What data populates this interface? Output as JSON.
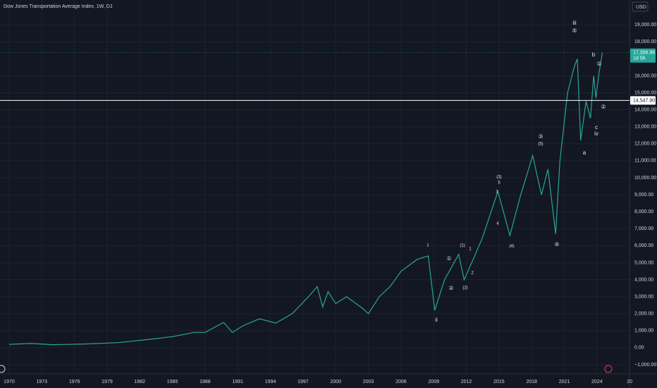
{
  "chart_data": {
    "type": "line",
    "title": "Dow Jones Transportation Average Index, 1W, DJ",
    "currency": "USD",
    "color": "#26a69a",
    "x": [
      1970,
      1972,
      1974,
      1975,
      1977,
      1980,
      1983,
      1985,
      1987,
      1988,
      1989.7,
      1990.5,
      1991.5,
      1993,
      1994.5,
      1996,
      1997.5,
      1998.3,
      1998.8,
      1999.3,
      2000,
      2001,
      2002.5,
      2003,
      2004,
      2005,
      2006,
      2007.5,
      2008.5,
      2009.1,
      2010,
      2011.3,
      2011.8,
      2012.5,
      2013.5,
      2014.9,
      2016,
      2017,
      2018.1,
      2018.9,
      2019.5,
      2020.2,
      2020.6,
      2021.3,
      2021.9,
      2022.2,
      2022.5,
      2023,
      2023.4,
      2023.7,
      2023.9,
      2024.2,
      2024.5
    ],
    "values": [
      200,
      250,
      180,
      190,
      220,
      300,
      500,
      650,
      900,
      900,
      1490,
      900,
      1300,
      1700,
      1450,
      2000,
      3000,
      3600,
      2400,
      3300,
      2600,
      3000,
      2300,
      2000,
      3000,
      3600,
      4500,
      5200,
      5400,
      2200,
      4000,
      5500,
      4000,
      5000,
      6500,
      9200,
      6600,
      9000,
      11300,
      9000,
      10500,
      6700,
      11000,
      15000,
      16500,
      17000,
      12200,
      14500,
      13500,
      16000,
      14700,
      16200,
      17356.96
    ],
    "xlim": [
      1969.16,
      2026.99
    ],
    "xticks": [
      1970,
      1973,
      1976,
      1979,
      1982,
      1985,
      1988,
      1991,
      1994,
      1997,
      2000,
      2003,
      2006,
      2009,
      2012,
      2015,
      2018,
      2021,
      2024,
      {
        "value": 2027,
        "label": "20"
      }
    ],
    "ylim": [
      -1540,
      20460
    ],
    "yticks": [
      {
        "value": -1000,
        "label": "−1,000.00"
      },
      {
        "value": 0,
        "label": "0.00"
      },
      {
        "value": 1000,
        "label": "1,000.00"
      },
      {
        "value": 2000,
        "label": "2,000.00"
      },
      {
        "value": 3000,
        "label": "3,000.00"
      },
      {
        "value": 4000,
        "label": "4,000.00"
      },
      {
        "value": 5000,
        "label": "5,000.00"
      },
      {
        "value": 6000,
        "label": "6,000.00"
      },
      {
        "value": 7000,
        "label": "7,000.00"
      },
      {
        "value": 8000,
        "label": "8,000.00"
      },
      {
        "value": 9000,
        "label": "9,000.00"
      },
      {
        "value": 10000,
        "label": "10,000.00"
      },
      {
        "value": 11000,
        "label": "11,000.00"
      },
      {
        "value": 12000,
        "label": "12,000.00"
      },
      {
        "value": 13000,
        "label": "13,000.00"
      },
      {
        "value": 14000,
        "label": "14,000.00"
      },
      {
        "value": 15000,
        "label": "15,000.00"
      },
      {
        "value": 16000,
        "label": "16,000.00"
      },
      {
        "value": 18000,
        "label": "18,000.00"
      },
      {
        "value": 19000,
        "label": "19,000.00"
      }
    ],
    "grid": true,
    "last_price": {
      "value": 17356.96,
      "label": "17,356.96",
      "countdown": "1d 5h"
    },
    "hline": {
      "value": 14547.9,
      "label": "14,547.90"
    },
    "annotations": [
      "iii",
      "⑤",
      "b",
      "①",
      "②",
      "c",
      "iv",
      "a",
      "③",
      "(5)",
      "(3)",
      "5",
      "3",
      "4",
      "(4)",
      "④",
      "i",
      "①",
      "②",
      "(1)",
      "1",
      "2",
      "(2)",
      "ii"
    ]
  }
}
